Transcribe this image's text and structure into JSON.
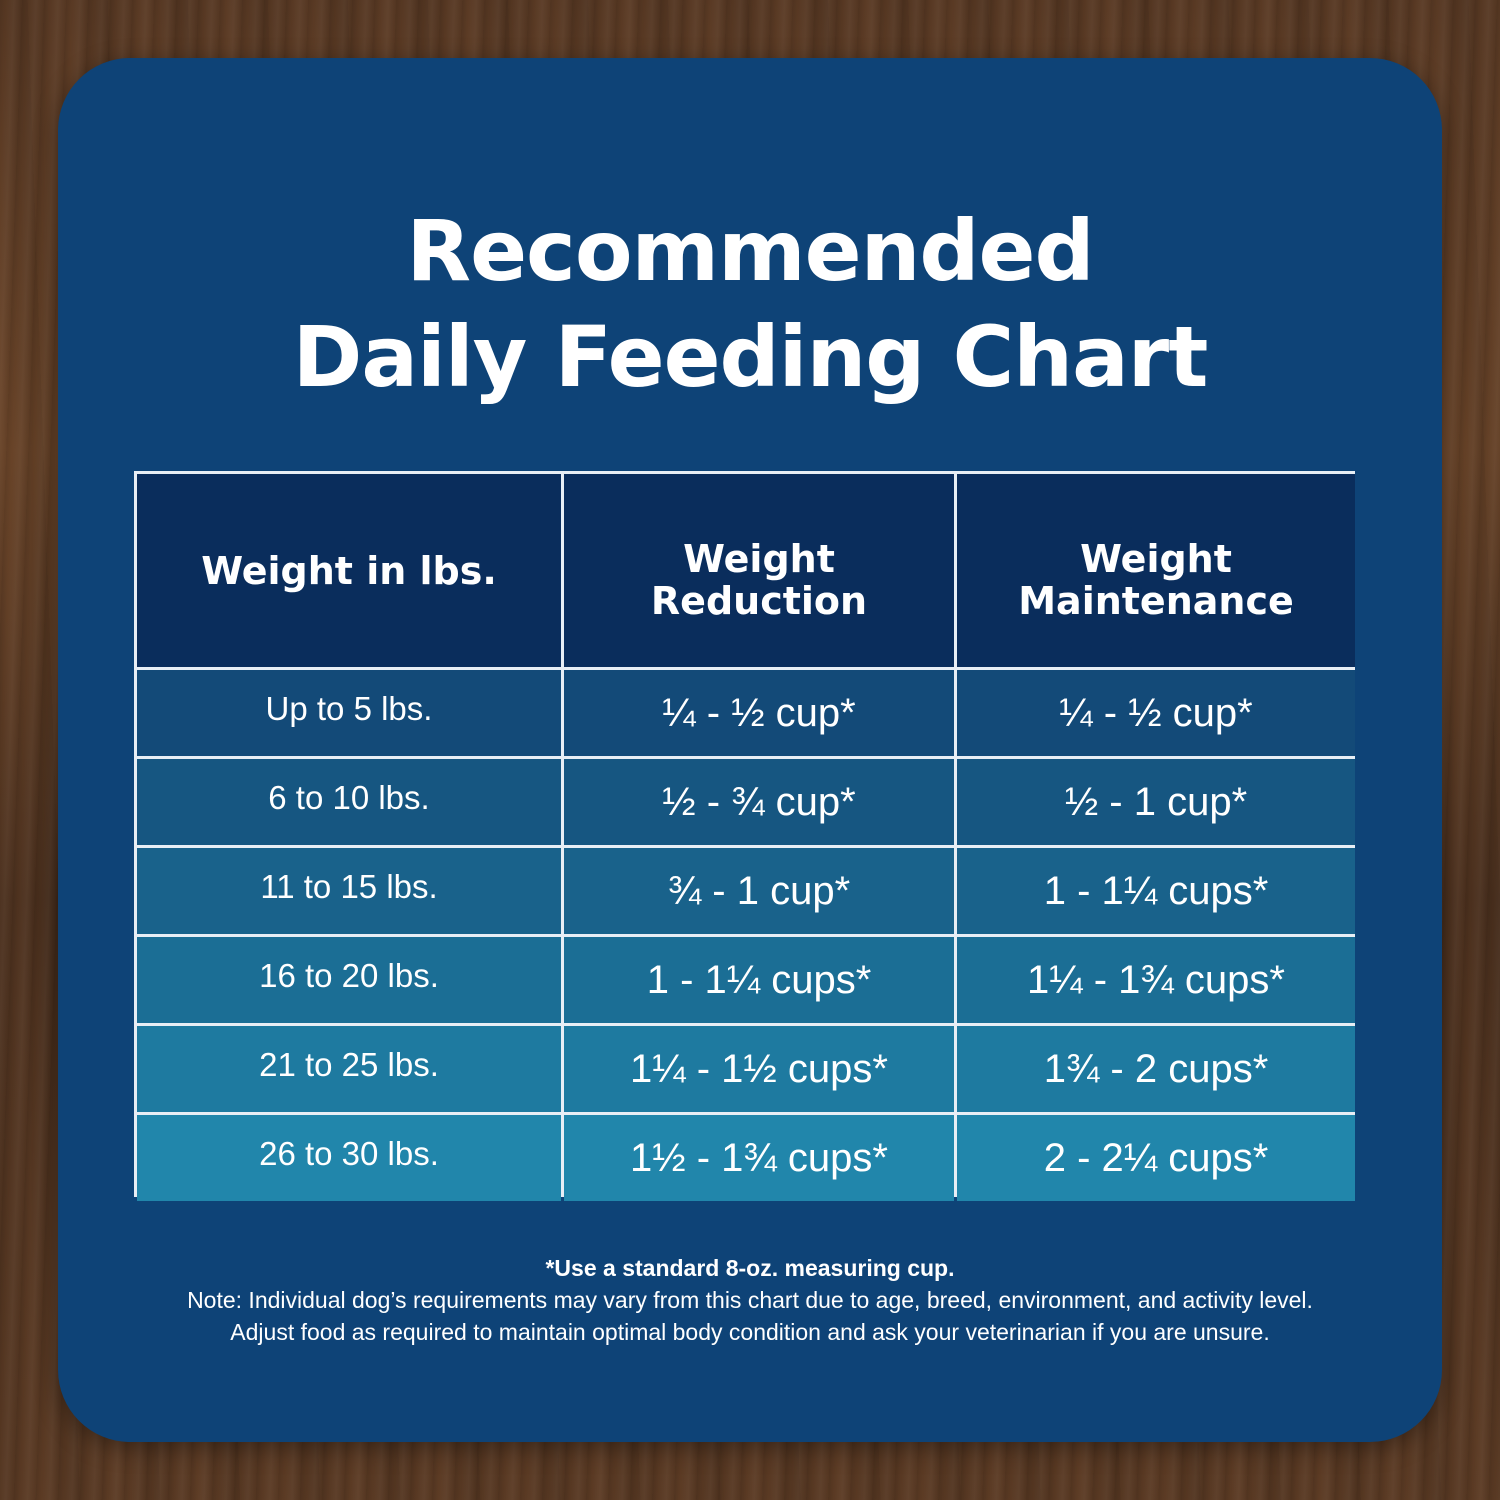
{
  "title": {
    "line1": "Recommended",
    "line2": "Daily Feeding Chart"
  },
  "table": {
    "headers": [
      "Weight in lbs.",
      "Weight Reduction",
      "Weight Maintenance"
    ],
    "header_lines": {
      "col2": [
        "Weight",
        "Reduction"
      ],
      "col3": [
        "Weight",
        "Maintenance"
      ]
    },
    "rows": [
      {
        "weight": "Up to 5 lbs.",
        "reduction": "¼ - ½ cup*",
        "maintenance": "¼ - ½ cup*"
      },
      {
        "weight": "6 to 10 lbs.",
        "reduction": "½ - ¾ cup*",
        "maintenance": "½ - 1 cup*"
      },
      {
        "weight": "11 to 15 lbs.",
        "reduction": "¾ - 1 cup*",
        "maintenance": "1 - 1¼ cups*"
      },
      {
        "weight": "16 to 20 lbs.",
        "reduction": "1 - 1¼ cups*",
        "maintenance": "1¼ - 1¾ cups*"
      },
      {
        "weight": "21 to 25 lbs.",
        "reduction": "1¼ - 1½ cups*",
        "maintenance": "1¾ - 2 cups*"
      },
      {
        "weight": "26 to 30 lbs.",
        "reduction": "1½ - 1¾ cups*",
        "maintenance": "2 - 2¼ cups*"
      }
    ]
  },
  "notes": {
    "footnote": "*Use a standard 8-oz. measuring cup.",
    "line1": "Note: Individual dog’s requirements may vary from this chart due to age, breed, environment, and activity level.",
    "line2": "Adjust food as required to maintain optimal body condition and ask your veterinarian if you are unsure."
  },
  "colors": {
    "card": "#0e4377",
    "header": "#0a2d5c",
    "row_gradient": [
      "#134a78",
      "#165681",
      "#19628b",
      "#1b6e95",
      "#1e7aa0",
      "#2186ab"
    ],
    "text": "#ffffff"
  }
}
